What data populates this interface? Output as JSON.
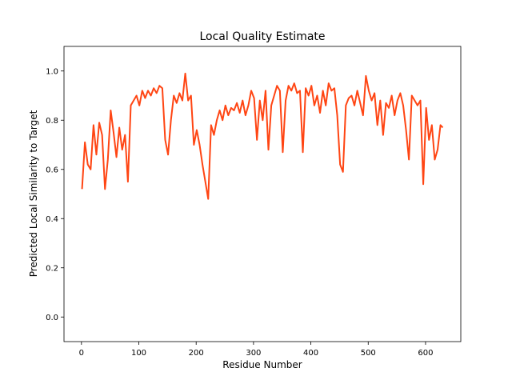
{
  "chart_data": {
    "type": "line",
    "title": "Local Quality Estimate",
    "x_label": "Residue Number",
    "y_label": "Predicted Local Similarity to Target",
    "xlim": [
      -30.45,
      661.45
    ],
    "ylim": [
      -0.1,
      1.1
    ],
    "xticks": [
      0,
      100,
      200,
      300,
      400,
      500,
      600
    ],
    "yticks": [
      {
        "value": 0,
        "label": "0.0"
      },
      0.2,
      0.4,
      0.6,
      0.8,
      {
        "value": 1,
        "label": "1.0"
      }
    ],
    "grid": false,
    "series": [
      {
        "color": "#ff4513",
        "x": [
          1,
          6,
          11,
          16,
          21,
          26,
          31,
          36,
          41,
          46,
          51,
          56,
          61,
          66,
          71,
          76,
          81,
          86,
          91,
          96,
          101,
          106,
          111,
          116,
          121,
          126,
          131,
          136,
          141,
          146,
          151,
          156,
          161,
          166,
          171,
          176,
          181,
          186,
          191,
          196,
          201,
          206,
          211,
          216,
          221,
          226,
          231,
          236,
          241,
          246,
          251,
          256,
          261,
          266,
          271,
          276,
          281,
          286,
          291,
          296,
          301,
          306,
          311,
          316,
          321,
          326,
          331,
          336,
          341,
          346,
          351,
          356,
          361,
          366,
          371,
          376,
          381,
          386,
          391,
          396,
          401,
          406,
          411,
          416,
          421,
          426,
          431,
          436,
          441,
          446,
          451,
          456,
          461,
          466,
          471,
          476,
          481,
          486,
          491,
          496,
          501,
          506,
          511,
          516,
          521,
          526,
          531,
          536,
          541,
          546,
          551,
          556,
          561,
          566,
          571,
          576,
          581,
          586,
          591,
          596,
          601,
          606,
          611,
          616,
          621,
          626,
          630
        ],
        "values": [
          0.52,
          0.71,
          0.62,
          0.6,
          0.78,
          0.66,
          0.79,
          0.74,
          0.52,
          0.64,
          0.84,
          0.75,
          0.65,
          0.77,
          0.68,
          0.74,
          0.55,
          0.86,
          0.88,
          0.9,
          0.86,
          0.92,
          0.89,
          0.92,
          0.9,
          0.93,
          0.91,
          0.94,
          0.93,
          0.72,
          0.66,
          0.8,
          0.9,
          0.87,
          0.91,
          0.88,
          0.99,
          0.88,
          0.9,
          0.7,
          0.76,
          0.7,
          0.62,
          0.55,
          0.48,
          0.78,
          0.74,
          0.8,
          0.84,
          0.8,
          0.86,
          0.82,
          0.85,
          0.84,
          0.87,
          0.83,
          0.88,
          0.82,
          0.86,
          0.92,
          0.89,
          0.72,
          0.88,
          0.8,
          0.92,
          0.68,
          0.86,
          0.9,
          0.94,
          0.92,
          0.67,
          0.88,
          0.94,
          0.92,
          0.95,
          0.91,
          0.92,
          0.67,
          0.93,
          0.9,
          0.94,
          0.86,
          0.9,
          0.83,
          0.92,
          0.86,
          0.95,
          0.92,
          0.93,
          0.82,
          0.62,
          0.59,
          0.86,
          0.89,
          0.9,
          0.86,
          0.92,
          0.87,
          0.82,
          0.98,
          0.92,
          0.88,
          0.91,
          0.78,
          0.88,
          0.74,
          0.87,
          0.85,
          0.9,
          0.82,
          0.88,
          0.91,
          0.86,
          0.76,
          0.64,
          0.9,
          0.88,
          0.86,
          0.88,
          0.54,
          0.85,
          0.72,
          0.78,
          0.64,
          0.68,
          0.78,
          0.77
        ]
      }
    ]
  }
}
